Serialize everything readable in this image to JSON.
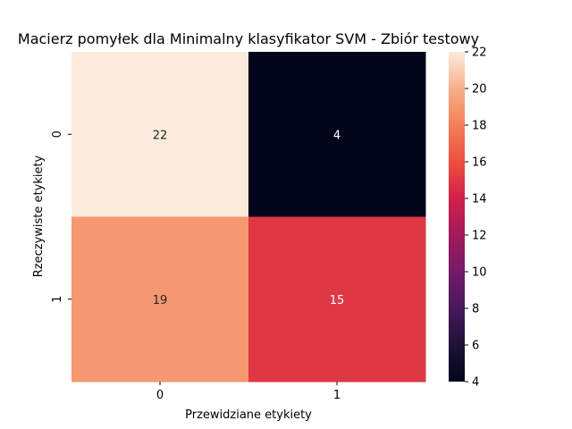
{
  "chart_data": {
    "type": "heatmap",
    "title": "Macierz pomyłek dla Minimalny klasyfikator SVM - Zbiór testowy",
    "xlabel": "Przewidziane etykiety",
    "ylabel": "Rzeczywiste etykiety",
    "x_categories": [
      "0",
      "1"
    ],
    "y_categories": [
      "0",
      "1"
    ],
    "values": [
      [
        22,
        4
      ],
      [
        19,
        15
      ]
    ],
    "colorbar": {
      "min": 4,
      "max": 22,
      "ticks": [
        "4",
        "6",
        "8",
        "10",
        "12",
        "14",
        "16",
        "18",
        "20",
        "22"
      ],
      "colormap": "rocket"
    }
  }
}
